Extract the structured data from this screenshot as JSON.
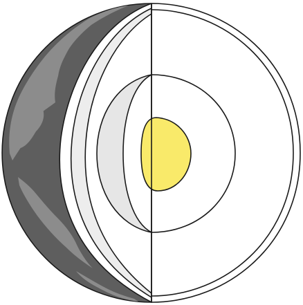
{
  "diagram": {
    "subject": "earth-interior-cutaway",
    "layers": [
      {
        "name": "crust",
        "color": "#ffffff"
      },
      {
        "name": "mantle",
        "color": "#ffffff"
      },
      {
        "name": "outer-core",
        "color": "#ffffff"
      },
      {
        "name": "inner-core",
        "color": "#f9ea6a"
      }
    ],
    "colors": {
      "ocean": "#5e5e5e",
      "land": "#8c8c8c",
      "cut_face": "#ffffff",
      "inner_wall": "#e6e6e6",
      "inner_core": "#f9ea6a",
      "outline": "#1a1a1a"
    },
    "labels": []
  }
}
